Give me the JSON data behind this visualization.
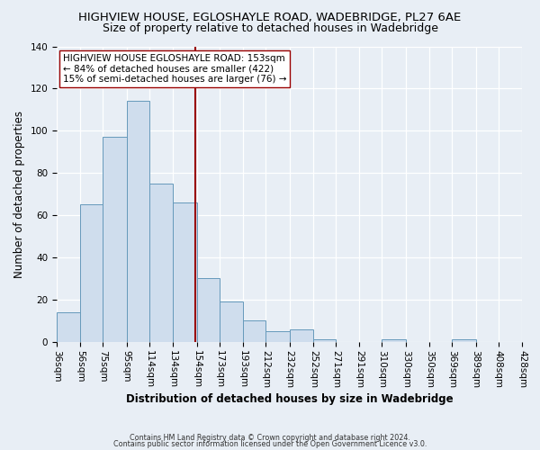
{
  "title": "HIGHVIEW HOUSE, EGLOSHAYLE ROAD, WADEBRIDGE, PL27 6AE",
  "subtitle": "Size of property relative to detached houses in Wadebridge",
  "xlabel": "Distribution of detached houses by size in Wadebridge",
  "ylabel": "Number of detached properties",
  "bar_heights": [
    14,
    65,
    97,
    114,
    75,
    66,
    30,
    19,
    10,
    5,
    6,
    1,
    0,
    0,
    1,
    0,
    0,
    1,
    0,
    0
  ],
  "bin_labels": [
    "36sqm",
    "56sqm",
    "75sqm",
    "95sqm",
    "114sqm",
    "134sqm",
    "154sqm",
    "173sqm",
    "193sqm",
    "212sqm",
    "232sqm",
    "252sqm",
    "271sqm",
    "291sqm",
    "310sqm",
    "330sqm",
    "350sqm",
    "369sqm",
    "389sqm",
    "408sqm",
    "428sqm"
  ],
  "bar_edges": [
    36,
    56,
    75,
    95,
    114,
    134,
    154,
    173,
    193,
    212,
    232,
    252,
    271,
    291,
    310,
    330,
    350,
    369,
    389,
    408,
    428
  ],
  "bar_color": "#cfdded",
  "bar_edgecolor": "#6699bb",
  "vline_x": 153,
  "vline_color": "#990000",
  "annotation_text": "HIGHVIEW HOUSE EGLOSHAYLE ROAD: 153sqm\n← 84% of detached houses are smaller (422)\n15% of semi-detached houses are larger (76) →",
  "annotation_box_color": "#ffffff",
  "annotation_box_edgecolor": "#990000",
  "ylim": [
    0,
    140
  ],
  "yticks": [
    0,
    20,
    40,
    60,
    80,
    100,
    120,
    140
  ],
  "footer1": "Contains HM Land Registry data © Crown copyright and database right 2024.",
  "footer2": "Contains public sector information licensed under the Open Government Licence v3.0.",
  "background_color": "#e8eef5",
  "plot_background": "#e8eef5",
  "grid_color": "#ffffff",
  "title_fontsize": 9.5,
  "subtitle_fontsize": 9,
  "axis_label_fontsize": 8.5,
  "tick_fontsize": 7.5,
  "annotation_fontsize": 7.5,
  "footer_fontsize": 5.8
}
